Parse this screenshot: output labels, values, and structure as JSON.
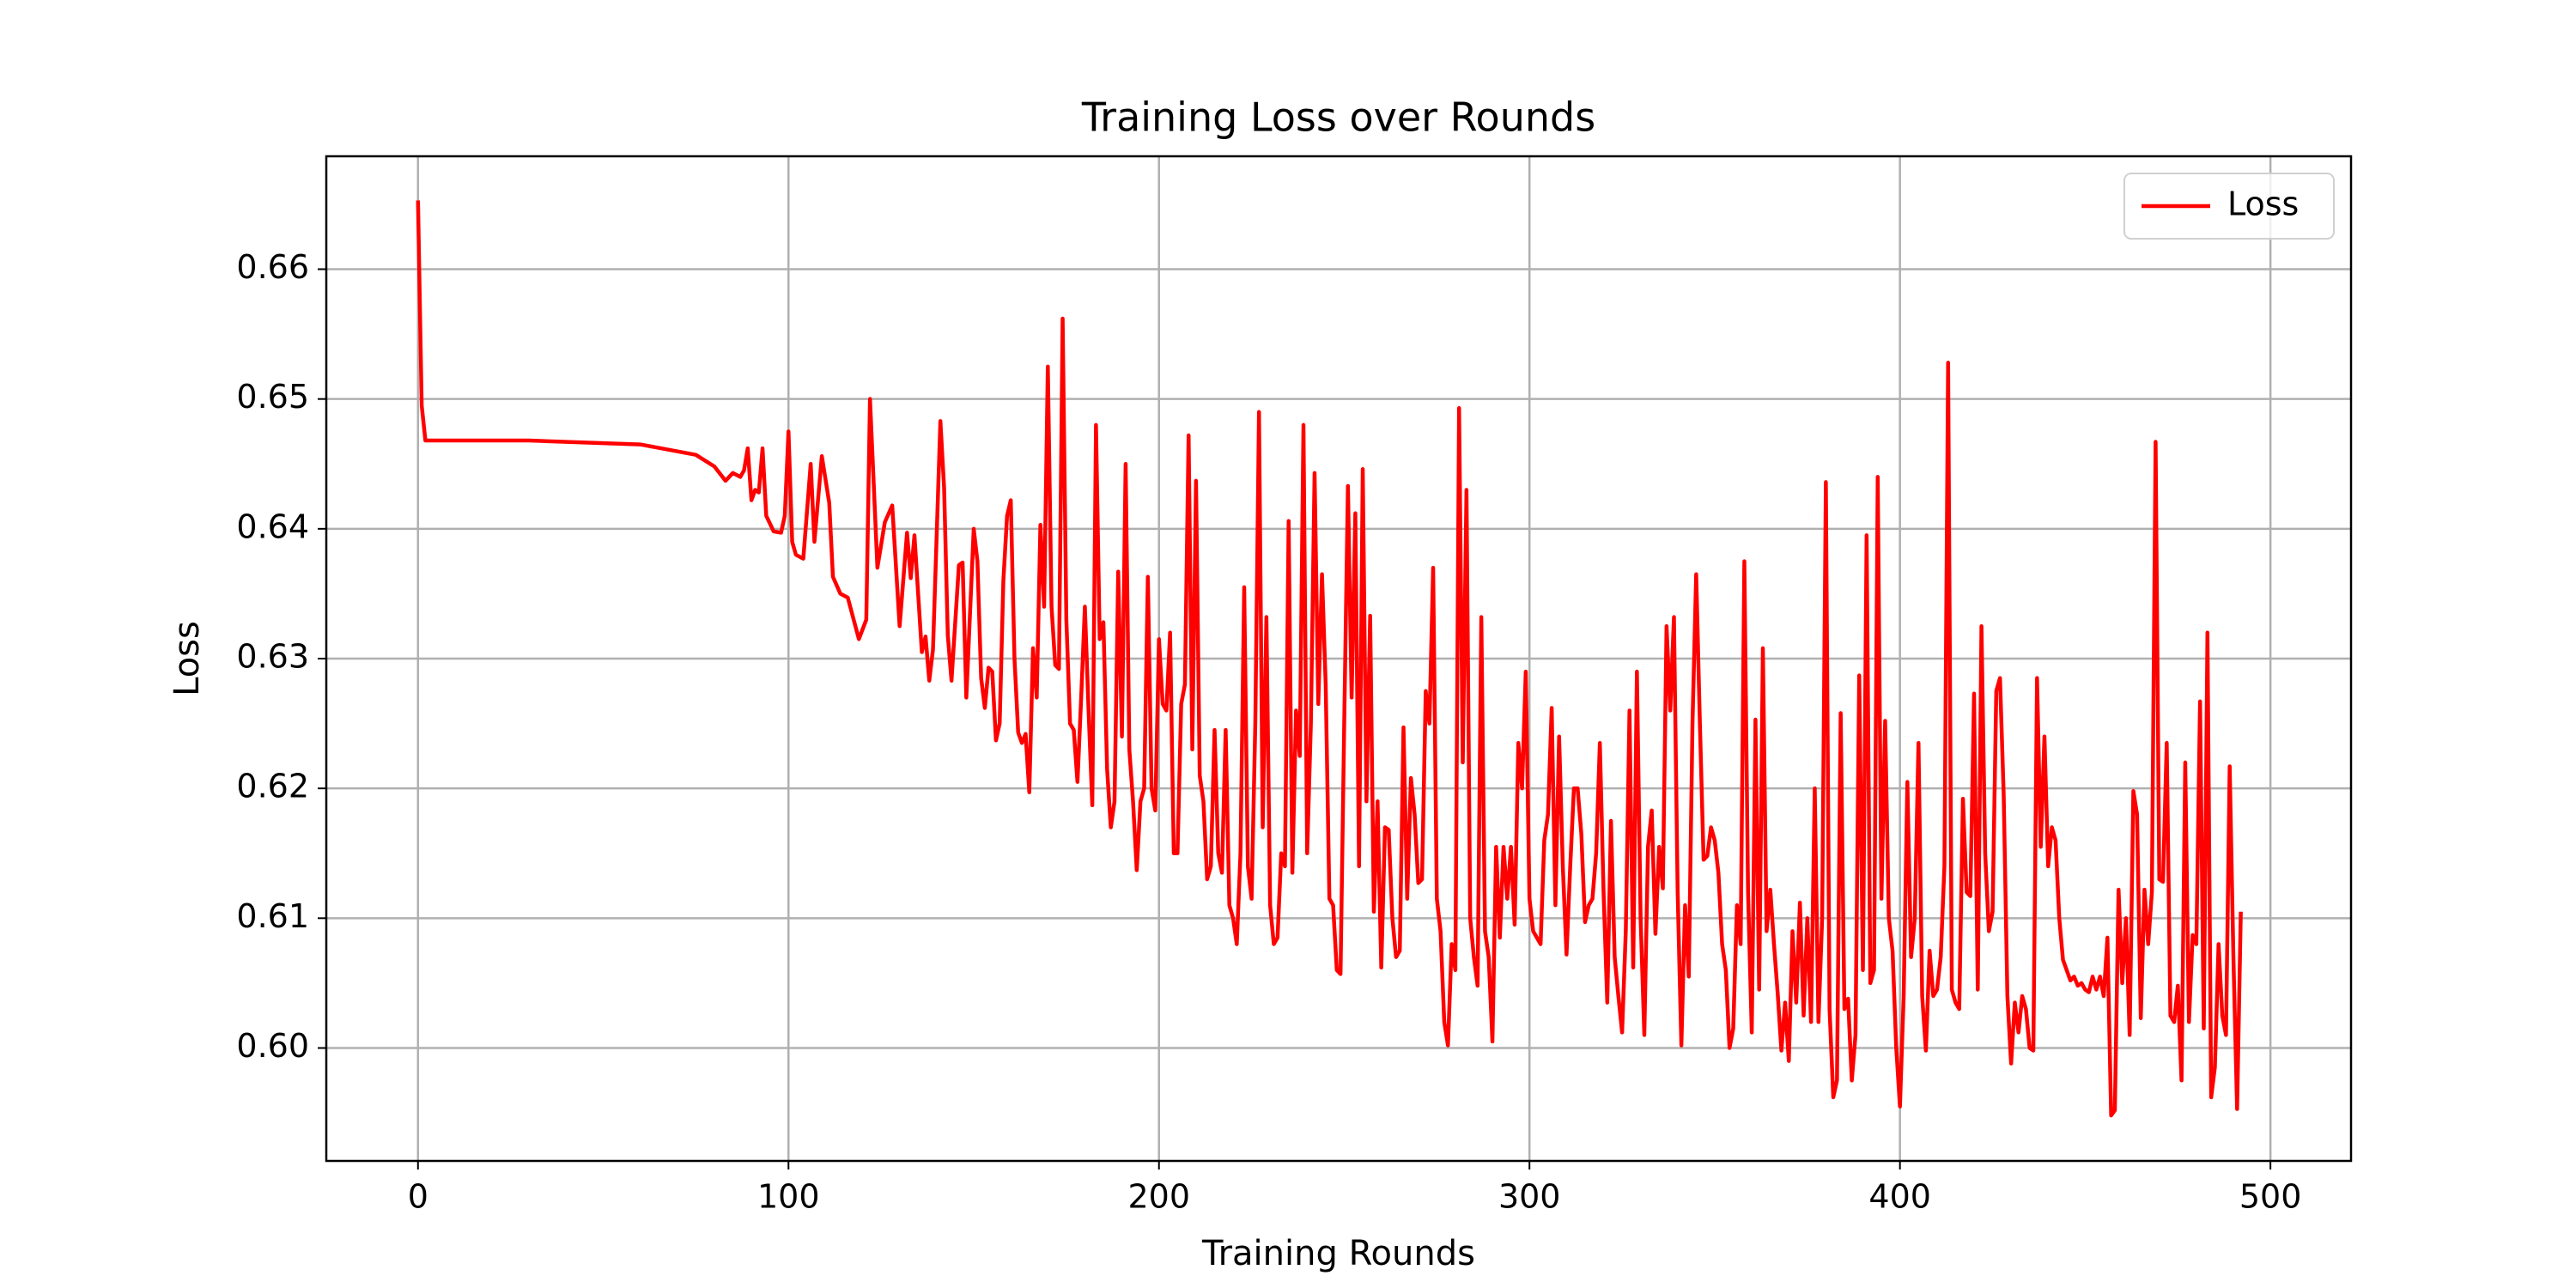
{
  "chart_data": {
    "type": "line",
    "title": "Training Loss over Rounds",
    "x_label": "Training Rounds",
    "y_label": "Loss",
    "x": [
      0,
      1,
      2,
      30,
      60,
      75,
      80,
      83,
      85,
      87,
      88,
      89,
      90,
      91,
      92,
      93,
      94,
      96,
      98,
      99,
      100,
      101,
      102,
      104,
      106,
      107,
      109,
      111,
      112,
      114,
      116,
      119,
      121,
      122,
      124,
      126,
      128,
      130,
      132,
      133,
      134,
      136,
      137,
      138,
      139,
      141,
      142,
      143,
      144,
      146,
      147,
      148,
      150,
      151,
      152,
      153,
      154,
      155,
      156,
      157,
      158,
      159,
      160,
      161,
      162,
      163,
      164,
      165,
      166,
      167,
      168,
      169,
      170,
      171,
      172,
      173,
      174,
      175,
      176,
      177,
      178,
      179,
      180,
      181,
      182,
      183,
      184,
      185,
      186,
      187,
      188,
      189,
      190,
      191,
      192,
      193,
      194,
      195,
      196,
      197,
      198,
      199,
      200,
      201,
      202,
      203,
      204,
      205,
      206,
      207,
      208,
      209,
      210,
      211,
      212,
      213,
      214,
      215,
      216,
      217,
      218,
      219,
      220,
      221,
      222,
      223,
      224,
      225,
      226,
      227,
      228,
      229,
      230,
      231,
      232,
      233,
      234,
      235,
      236,
      237,
      238,
      239,
      240,
      241,
      242,
      243,
      244,
      245,
      246,
      247,
      248,
      249,
      250,
      251,
      252,
      253,
      254,
      255,
      256,
      257,
      258,
      259,
      260,
      261,
      262,
      263,
      264,
      265,
      266,
      267,
      268,
      269,
      270,
      271,
      272,
      273,
      274,
      275,
      276,
      277,
      278,
      279,
      280,
      281,
      282,
      283,
      284,
      285,
      286,
      287,
      288,
      289,
      290,
      291,
      292,
      293,
      294,
      295,
      296,
      297,
      298,
      299,
      300,
      301,
      302,
      303,
      304,
      305,
      306,
      307,
      308,
      309,
      310,
      311,
      312,
      313,
      314,
      315,
      316,
      317,
      318,
      319,
      320,
      321,
      322,
      323,
      324,
      325,
      326,
      327,
      328,
      329,
      330,
      331,
      332,
      333,
      334,
      335,
      336,
      337,
      338,
      339,
      340,
      341,
      342,
      343,
      344,
      345,
      346,
      347,
      348,
      349,
      350,
      351,
      352,
      353,
      354,
      355,
      356,
      357,
      358,
      359,
      360,
      361,
      362,
      363,
      364,
      365,
      366,
      367,
      368,
      369,
      370,
      371,
      372,
      373,
      374,
      375,
      376,
      377,
      378,
      379,
      380,
      381,
      382,
      383,
      384,
      385,
      386,
      387,
      388,
      389,
      390,
      391,
      392,
      393,
      394,
      395,
      396,
      397,
      398,
      399,
      400,
      401,
      402,
      403,
      404,
      405,
      406,
      407,
      408,
      409,
      410,
      411,
      412,
      413,
      414,
      415,
      416,
      417,
      418,
      419,
      420,
      421,
      422,
      423,
      424,
      425,
      426,
      427,
      428,
      429,
      430,
      431,
      432,
      433,
      434,
      435,
      436,
      437,
      438,
      439,
      440,
      441,
      442,
      443,
      444,
      445,
      446,
      447,
      448,
      449,
      450,
      451,
      452,
      453,
      454,
      455,
      456,
      457,
      458,
      459,
      460,
      461,
      462,
      463,
      464,
      465,
      466,
      467,
      468,
      469,
      470,
      471,
      472,
      473,
      474,
      475,
      476,
      477,
      478,
      479,
      480,
      481,
      482,
      483,
      484,
      485,
      486,
      487,
      488,
      489,
      490,
      491,
      492
    ],
    "series": [
      {
        "name": "Loss",
        "color": "#ff0000",
        "values": [
          0.6653,
          0.6495,
          0.6468,
          0.6468,
          0.6465,
          0.6457,
          0.6448,
          0.6437,
          0.6443,
          0.644,
          0.6445,
          0.6462,
          0.6422,
          0.643,
          0.6428,
          0.6462,
          0.641,
          0.6398,
          0.6397,
          0.641,
          0.6475,
          0.639,
          0.638,
          0.6377,
          0.645,
          0.639,
          0.6456,
          0.642,
          0.6363,
          0.635,
          0.6347,
          0.6315,
          0.633,
          0.65,
          0.637,
          0.6405,
          0.6418,
          0.6325,
          0.6397,
          0.6362,
          0.6395,
          0.6305,
          0.6317,
          0.6283,
          0.6307,
          0.6483,
          0.6432,
          0.6318,
          0.6283,
          0.6372,
          0.6374,
          0.627,
          0.64,
          0.6375,
          0.6285,
          0.6262,
          0.6293,
          0.629,
          0.6237,
          0.625,
          0.636,
          0.641,
          0.6422,
          0.63,
          0.6243,
          0.6235,
          0.6242,
          0.6197,
          0.6308,
          0.627,
          0.6403,
          0.634,
          0.6525,
          0.634,
          0.6295,
          0.6292,
          0.6562,
          0.633,
          0.625,
          0.6245,
          0.6205,
          0.627,
          0.634,
          0.626,
          0.6187,
          0.648,
          0.6315,
          0.6328,
          0.6215,
          0.617,
          0.619,
          0.6367,
          0.624,
          0.645,
          0.623,
          0.619,
          0.6137,
          0.619,
          0.62,
          0.6363,
          0.62,
          0.6183,
          0.6315,
          0.6265,
          0.626,
          0.632,
          0.615,
          0.615,
          0.6265,
          0.628,
          0.6472,
          0.623,
          0.6437,
          0.621,
          0.619,
          0.613,
          0.614,
          0.6245,
          0.615,
          0.6135,
          0.6245,
          0.611,
          0.61,
          0.608,
          0.615,
          0.6355,
          0.614,
          0.6115,
          0.625,
          0.649,
          0.617,
          0.6332,
          0.611,
          0.608,
          0.6085,
          0.615,
          0.614,
          0.6406,
          0.6135,
          0.626,
          0.6225,
          0.648,
          0.615,
          0.625,
          0.6443,
          0.6265,
          0.6365,
          0.628,
          0.6115,
          0.611,
          0.606,
          0.6057,
          0.625,
          0.6433,
          0.627,
          0.6412,
          0.614,
          0.6446,
          0.619,
          0.6333,
          0.6105,
          0.619,
          0.6062,
          0.617,
          0.6168,
          0.61,
          0.607,
          0.6075,
          0.6247,
          0.6115,
          0.6208,
          0.618,
          0.6127,
          0.613,
          0.6275,
          0.625,
          0.637,
          0.6115,
          0.609,
          0.602,
          0.6002,
          0.608,
          0.606,
          0.6493,
          0.622,
          0.643,
          0.61,
          0.607,
          0.6048,
          0.6332,
          0.609,
          0.607,
          0.6005,
          0.6155,
          0.6085,
          0.6155,
          0.6115,
          0.6155,
          0.6095,
          0.6235,
          0.62,
          0.629,
          0.6115,
          0.609,
          0.6085,
          0.608,
          0.616,
          0.618,
          0.6262,
          0.611,
          0.624,
          0.614,
          0.6072,
          0.614,
          0.62,
          0.62,
          0.6165,
          0.6097,
          0.611,
          0.6115,
          0.615,
          0.6235,
          0.612,
          0.6035,
          0.6175,
          0.607,
          0.604,
          0.6012,
          0.609,
          0.626,
          0.6062,
          0.629,
          0.61,
          0.601,
          0.6155,
          0.6183,
          0.6088,
          0.6155,
          0.6123,
          0.6325,
          0.626,
          0.6332,
          0.612,
          0.6002,
          0.611,
          0.6055,
          0.625,
          0.6365,
          0.625,
          0.6145,
          0.6148,
          0.617,
          0.616,
          0.6135,
          0.608,
          0.606,
          0.6,
          0.6015,
          0.611,
          0.608,
          0.6375,
          0.612,
          0.6012,
          0.6253,
          0.6045,
          0.6308,
          0.609,
          0.6122,
          0.608,
          0.6042,
          0.5998,
          0.6035,
          0.599,
          0.609,
          0.6035,
          0.6112,
          0.6025,
          0.61,
          0.602,
          0.62,
          0.602,
          0.61,
          0.6436,
          0.603,
          0.5962,
          0.5975,
          0.6258,
          0.603,
          0.6038,
          0.5975,
          0.601,
          0.6287,
          0.606,
          0.6395,
          0.605,
          0.606,
          0.644,
          0.6115,
          0.6252,
          0.61,
          0.6075,
          0.6,
          0.5955,
          0.604,
          0.6205,
          0.607,
          0.61,
          0.6235,
          0.604,
          0.5998,
          0.6075,
          0.604,
          0.6045,
          0.607,
          0.614,
          0.6528,
          0.6045,
          0.6035,
          0.603,
          0.6192,
          0.612,
          0.6117,
          0.6273,
          0.6045,
          0.6325,
          0.615,
          0.609,
          0.6105,
          0.6275,
          0.6285,
          0.6195,
          0.604,
          0.5988,
          0.6035,
          0.6012,
          0.604,
          0.603,
          0.6,
          0.5998,
          0.6285,
          0.6155,
          0.624,
          0.614,
          0.617,
          0.616,
          0.61,
          0.6068,
          0.606,
          0.6052,
          0.6055,
          0.6048,
          0.605,
          0.6045,
          0.6043,
          0.6055,
          0.6045,
          0.6055,
          0.604,
          0.6085,
          0.5948,
          0.5952,
          0.6122,
          0.605,
          0.61,
          0.601,
          0.6198,
          0.618,
          0.6023,
          0.6122,
          0.608,
          0.612,
          0.6467,
          0.613,
          0.6128,
          0.6235,
          0.6025,
          0.602,
          0.6048,
          0.5975,
          0.622,
          0.602,
          0.6087,
          0.608,
          0.6267,
          0.6015,
          0.632,
          0.5962,
          0.5985,
          0.608,
          0.6025,
          0.601,
          0.6217,
          0.607,
          0.5953,
          0.6105
        ]
      }
    ],
    "xlim": [
      -24.75,
      521.75
    ],
    "xticks": [
      0,
      100,
      200,
      300,
      400,
      500
    ],
    "ylim": [
      0.5913,
      0.6687
    ],
    "yticks": [
      {
        "value": 0.6,
        "label": "0.60"
      },
      {
        "value": 0.61,
        "label": "0.61"
      },
      {
        "value": 0.62,
        "label": "0.62"
      },
      {
        "value": 0.63,
        "label": "0.63"
      },
      {
        "value": 0.64,
        "label": "0.64"
      },
      {
        "value": 0.65,
        "label": "0.65"
      },
      {
        "value": 0.66,
        "label": "0.66"
      }
    ],
    "grid": true,
    "legend": "upper right"
  }
}
